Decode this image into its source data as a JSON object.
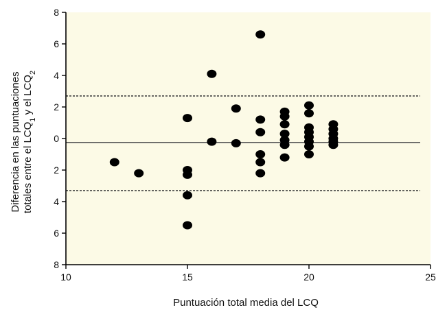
{
  "chart_data": {
    "type": "scatter",
    "title": "",
    "xlabel": "Puntuación total media del LCQ",
    "ylabel": {
      "line1": "Diferencia en las puntuaciones",
      "line2_prefix": "totales entre el LCQ",
      "sub1": "1",
      "line2_mid": " y el LCQ",
      "sub2": "2"
    },
    "xlim": [
      10,
      25
    ],
    "ylim": [
      -8,
      8
    ],
    "x_ticks": [
      10,
      15,
      20,
      25
    ],
    "y_ticks": [
      8,
      6,
      4,
      2,
      0,
      -2,
      -4,
      -6,
      -8
    ],
    "y_tick_labels": [
      "8",
      "6",
      "4",
      "2",
      "0",
      "2",
      "4",
      "6",
      "8"
    ],
    "background_color": "#fcfae6",
    "point_color": "#000000",
    "mean_line": -0.25,
    "limits_of_agreement": [
      2.7,
      -3.3
    ],
    "points": [
      {
        "x": 12,
        "y": -1.5
      },
      {
        "x": 13,
        "y": -2.2
      },
      {
        "x": 15,
        "y": 1.3
      },
      {
        "x": 15,
        "y": -2.0
      },
      {
        "x": 15,
        "y": -2.3
      },
      {
        "x": 15,
        "y": -3.6
      },
      {
        "x": 15,
        "y": -5.5
      },
      {
        "x": 16,
        "y": 4.1
      },
      {
        "x": 16,
        "y": -0.2
      },
      {
        "x": 17,
        "y": 1.9
      },
      {
        "x": 17,
        "y": -0.3
      },
      {
        "x": 18,
        "y": 6.6
      },
      {
        "x": 18,
        "y": 1.2
      },
      {
        "x": 18,
        "y": 0.4
      },
      {
        "x": 18,
        "y": -1.0
      },
      {
        "x": 18,
        "y": -1.5
      },
      {
        "x": 18,
        "y": -2.2
      },
      {
        "x": 19,
        "y": 1.7
      },
      {
        "x": 19,
        "y": 1.4
      },
      {
        "x": 19,
        "y": 0.9
      },
      {
        "x": 19,
        "y": 0.3
      },
      {
        "x": 19,
        "y": -0.1
      },
      {
        "x": 19,
        "y": -0.4
      },
      {
        "x": 19,
        "y": -1.2
      },
      {
        "x": 20,
        "y": 2.1
      },
      {
        "x": 20,
        "y": 1.6
      },
      {
        "x": 20,
        "y": 0.7
      },
      {
        "x": 20,
        "y": 0.4
      },
      {
        "x": 20,
        "y": 0.1
      },
      {
        "x": 20,
        "y": -0.2
      },
      {
        "x": 20,
        "y": -0.5
      },
      {
        "x": 20,
        "y": -1.0
      },
      {
        "x": 21,
        "y": 0.9
      },
      {
        "x": 21,
        "y": 0.6
      },
      {
        "x": 21,
        "y": 0.3
      },
      {
        "x": 21,
        "y": 0.0
      },
      {
        "x": 21,
        "y": -0.2
      },
      {
        "x": 21,
        "y": -0.4
      }
    ]
  }
}
